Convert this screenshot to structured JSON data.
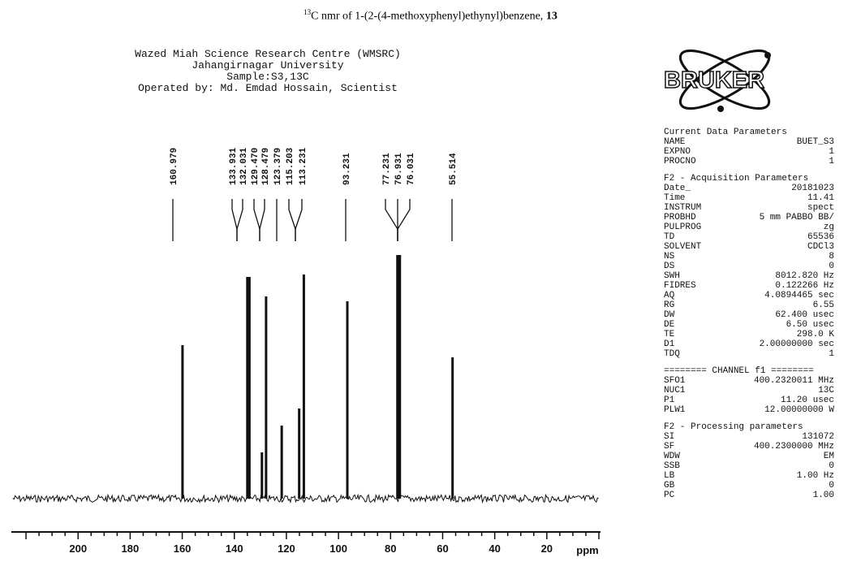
{
  "caption": {
    "sup": "13",
    "text": "C nmr of 1-(2-(4-methoxyphenyl)ethynyl)benzene, ",
    "bold": "13"
  },
  "header": {
    "line1": "Wazed Miah Science Research Centre (WMSRC)",
    "line2": "Jahangirnagar University",
    "line3": "Sample:S3,13C",
    "line4": "Operated by: Md. Emdad Hossain, Scientist"
  },
  "logo": {
    "text": "BRUKER"
  },
  "chart_data": {
    "type": "bar",
    "title": "",
    "xlabel": "ppm",
    "xlim": [
      225,
      0
    ],
    "x_ticks": [
      200,
      180,
      160,
      140,
      120,
      100,
      80,
      60,
      40,
      20
    ],
    "ylim": [
      0,
      1
    ],
    "peak_labels": [
      "160.979",
      "133.931",
      "132.031",
      "129.470",
      "128.479",
      "123.379",
      "115.203",
      "113.231",
      "93.231",
      "77.231",
      "76.931",
      "76.031",
      "55.514"
    ],
    "peaks": [
      {
        "ppm": 159.9,
        "height": 0.63
      },
      {
        "ppm": 135.0,
        "height": 0.91
      },
      {
        "ppm": 134.2,
        "height": 0.91
      },
      {
        "ppm": 129.4,
        "height": 0.19
      },
      {
        "ppm": 127.8,
        "height": 0.83
      },
      {
        "ppm": 121.8,
        "height": 0.3
      },
      {
        "ppm": 115.1,
        "height": 0.37
      },
      {
        "ppm": 113.3,
        "height": 0.92
      },
      {
        "ppm": 96.6,
        "height": 0.81
      },
      {
        "ppm": 76.9,
        "height": 1.0
      },
      {
        "ppm": 56.2,
        "height": 0.58
      }
    ]
  },
  "params": {
    "current_title": "Current Data Parameters",
    "current": [
      [
        "NAME",
        "BUET_S3"
      ],
      [
        "EXPNO",
        "1"
      ],
      [
        "PROCNO",
        "1"
      ]
    ],
    "f2_acq_title": "F2 - Acquisition Parameters",
    "f2_acq": [
      [
        "Date_",
        "20181023"
      ],
      [
        "Time",
        "11.41"
      ],
      [
        "INSTRUM",
        "spect"
      ],
      [
        "PROBHD",
        "5 mm PABBO BB/"
      ],
      [
        "PULPROG",
        "zg"
      ],
      [
        "TD",
        "65536"
      ],
      [
        "SOLVENT",
        "CDCl3"
      ],
      [
        "NS",
        "8"
      ],
      [
        "DS",
        "0"
      ],
      [
        "SWH",
        "8012.820 Hz"
      ],
      [
        "FIDRES",
        "0.122266 Hz"
      ],
      [
        "AQ",
        "4.0894465 sec"
      ],
      [
        "RG",
        "6.55"
      ],
      [
        "DW",
        "62.400 usec"
      ],
      [
        "DE",
        "6.50 usec"
      ],
      [
        "TE",
        "298.0 K"
      ],
      [
        "D1",
        "2.00000000 sec"
      ],
      [
        "TDQ",
        "1"
      ]
    ],
    "channel_title": "======== CHANNEL f1 ========",
    "channel": [
      [
        "SFO1",
        "400.2320011 MHz"
      ],
      [
        "NUC1",
        "13C"
      ],
      [
        "P1",
        "11.20 usec"
      ],
      [
        "PLW1",
        "12.00000000 W"
      ]
    ],
    "f2_proc_title": "F2 - Processing parameters",
    "f2_proc": [
      [
        "SI",
        "131072"
      ],
      [
        "SF",
        "400.2300000 MHz"
      ],
      [
        "WDW",
        "EM"
      ],
      [
        "SSB",
        "0"
      ],
      [
        "LB",
        "1.00 Hz"
      ],
      [
        "GB",
        "0"
      ],
      [
        "PC",
        "1.00"
      ]
    ]
  }
}
